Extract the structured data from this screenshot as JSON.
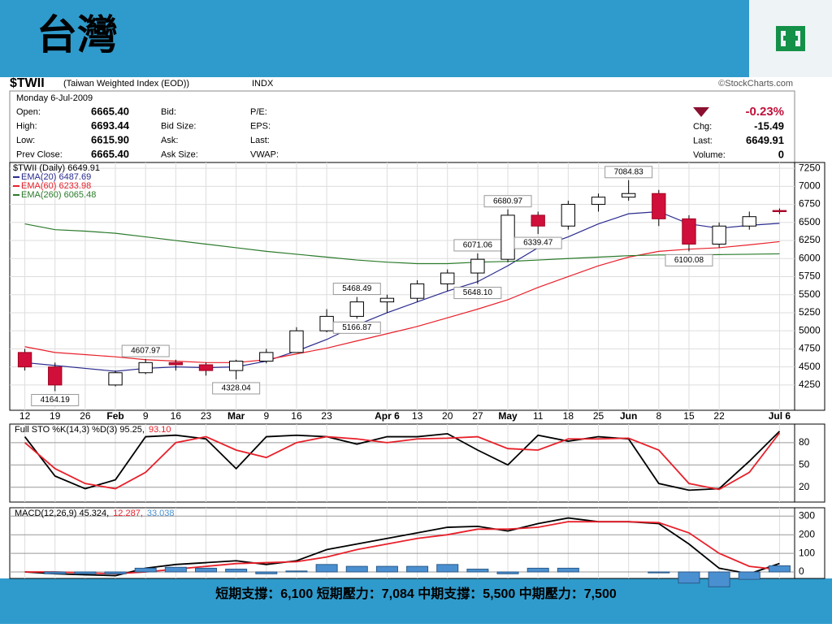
{
  "header": {
    "title": "台灣"
  },
  "footer": {
    "text": "短期支撐：6,100 短期壓力：7,084 中期支撐：5,500 中期壓力：7,500"
  },
  "info": {
    "symbol": "$TWII",
    "name": "(Taiwan Weighted Index (EOD))",
    "exchange": "INDX",
    "source": "©StockCharts.com",
    "date": "Monday  6-Jul-2009",
    "rows": [
      [
        "Open:",
        "6665.40",
        "Bid:",
        "P/E:"
      ],
      [
        "High:",
        "6693.44",
        "Bid Size:",
        "EPS:"
      ],
      [
        "Low:",
        "6615.90",
        "Ask:",
        "Last:"
      ],
      [
        "Prev Close:",
        "6665.40",
        "Ask Size:",
        "VWAP:"
      ]
    ],
    "change_pct": "-0.23%",
    "right_rows": [
      [
        "Chg:",
        "-15.49"
      ],
      [
        "Last:",
        "6649.91"
      ],
      [
        "Volume:",
        "0"
      ]
    ]
  },
  "chart_data": [
    {
      "type": "candlestick",
      "legend_title": "$TWII (Daily) 6649.91",
      "legend": "top-left",
      "grid": true,
      "categories": [
        "12",
        "19",
        "26",
        "Feb",
        "9",
        "16",
        "23",
        "Mar",
        "9",
        "16",
        "23",
        null,
        "Apr 6",
        "13",
        "20",
        "27",
        "May",
        "11",
        "18",
        "25",
        "Jun",
        "8",
        "15",
        "22",
        null,
        "Jul 6"
      ],
      "open": [
        4700,
        4500,
        null,
        4250,
        4420,
        4560,
        4530,
        4450,
        4580,
        4700,
        5000,
        5200,
        5400,
        5450,
        5650,
        5800,
        5990,
        6600,
        6450,
        6750,
        6850,
        6900,
        6550,
        6200,
        6450,
        6665.4
      ],
      "high": [
        4750,
        4560,
        null,
        4450,
        4607.97,
        4600,
        4560,
        4600,
        4750,
        5050,
        5300,
        5468.49,
        5500,
        5700,
        5850,
        6071.06,
        6680.97,
        6650,
        6800,
        6900,
        7084.83,
        6950,
        6600,
        6500,
        6650,
        6693.44
      ],
      "low": [
        4450,
        4164.19,
        null,
        4230,
        4400,
        4450,
        4380,
        4328.04,
        4550,
        4700,
        4980,
        5166.87,
        5250,
        5400,
        5550,
        5648.1,
        5950,
        6339.47,
        6400,
        6650,
        6800,
        6450,
        6100.08,
        6150,
        6400,
        6615.9
      ],
      "close": [
        4500,
        4250,
        null,
        4420,
        4560,
        4530,
        4450,
        4580,
        4700,
        5000,
        5200,
        5400,
        5450,
        5650,
        5800,
        5990,
        6600,
        6450,
        6750,
        6850,
        6900,
        6550,
        6200,
        6450,
        6580,
        6649.91
      ],
      "high_labels": [
        null,
        null,
        null,
        null,
        "4607.97",
        null,
        null,
        null,
        null,
        null,
        null,
        "5468.49",
        null,
        null,
        null,
        "6071.06",
        "6680.97",
        null,
        null,
        null,
        "7084.83",
        null,
        null,
        null,
        null,
        null
      ],
      "low_labels": [
        null,
        "4164.19",
        null,
        null,
        null,
        null,
        null,
        "4328.04",
        null,
        null,
        null,
        "5166.87",
        null,
        null,
        null,
        "5648.10",
        null,
        "6339.47",
        null,
        null,
        null,
        null,
        "6100.08",
        null,
        null,
        null
      ],
      "series": [
        {
          "name": "EMA(20) 6487.69",
          "color": "#2b2b8f",
          "values": [
            4560,
            4520,
            4480,
            4440,
            4480,
            4500,
            4490,
            4500,
            4580,
            4720,
            4880,
            5080,
            5250,
            5400,
            5550,
            5680,
            5900,
            6150,
            6300,
            6480,
            6620,
            6650,
            6480,
            6420,
            6460,
            6487.69
          ]
        },
        {
          "name": "EMA(60) 6233.98",
          "color": "#e8202a",
          "values": [
            4780,
            4700,
            4670,
            4640,
            4600,
            4580,
            4560,
            4560,
            4600,
            4680,
            4760,
            4860,
            4960,
            5060,
            5180,
            5300,
            5430,
            5600,
            5750,
            5900,
            6020,
            6100,
            6130,
            6150,
            6190,
            6233.98
          ]
        },
        {
          "name": "EMA(260) 6065.48",
          "color": "#2a7a2a",
          "values": [
            6480,
            6400,
            6380,
            6350,
            6300,
            6250,
            6200,
            6150,
            6100,
            6060,
            6020,
            5980,
            5950,
            5930,
            5930,
            5950,
            5960,
            5980,
            6000,
            6020,
            6040,
            6050,
            6050,
            6055,
            6060,
            6065.48
          ]
        }
      ],
      "ylim": [
        3900,
        7330
      ],
      "yticks": [
        4250,
        4500,
        4750,
        5000,
        5250,
        5500,
        5750,
        6000,
        6250,
        6500,
        6750,
        7000,
        7250
      ]
    },
    {
      "type": "line",
      "grid": true,
      "series": [
        {
          "name": "Full STO %K(14,3) %D(3) 95.25,",
          "color": "#000000",
          "values": [
            88,
            35,
            18,
            30,
            88,
            90,
            85,
            45,
            88,
            90,
            88,
            78,
            88,
            88,
            92,
            70,
            50,
            90,
            82,
            88,
            85,
            25,
            16,
            18,
            55,
            95.25
          ]
        },
        {
          "name": "93.10",
          "color": "#e8202a",
          "values": [
            80,
            45,
            25,
            18,
            40,
            80,
            88,
            70,
            60,
            80,
            88,
            85,
            80,
            85,
            86,
            88,
            72,
            70,
            85,
            85,
            86,
            70,
            25,
            17,
            40,
            93.1
          ]
        }
      ],
      "ylim": [
        0,
        105
      ],
      "yticks": [
        20,
        50,
        80
      ]
    },
    {
      "type": "line",
      "grid": true,
      "series": [
        {
          "name": "MACD(12,26,9) 45.324,",
          "color": "#000000",
          "values": [
            0,
            -10,
            -15,
            -20,
            20,
            40,
            50,
            60,
            40,
            60,
            120,
            150,
            180,
            210,
            240,
            245,
            220,
            260,
            290,
            270,
            270,
            260,
            150,
            20,
            -10,
            45.324
          ]
        },
        {
          "name": "12.287,",
          "color": "#e8202a",
          "values": [
            0,
            0,
            -5,
            -10,
            0,
            15,
            30,
            45,
            50,
            55,
            80,
            120,
            150,
            180,
            200,
            230,
            230,
            240,
            270,
            270,
            270,
            265,
            210,
            100,
            30,
            12.287
          ]
        },
        {
          "name": "33.038",
          "color": "#4a90d0",
          "kind": "bar",
          "values": [
            0,
            -10,
            -10,
            -10,
            20,
            25,
            20,
            15,
            -10,
            5,
            40,
            30,
            30,
            30,
            40,
            15,
            -10,
            20,
            20,
            0,
            0,
            -5,
            -60,
            -80,
            -40,
            33.038
          ]
        }
      ],
      "ylim": [
        -35,
        345
      ],
      "yticks": [
        0,
        100,
        200,
        300
      ]
    }
  ]
}
